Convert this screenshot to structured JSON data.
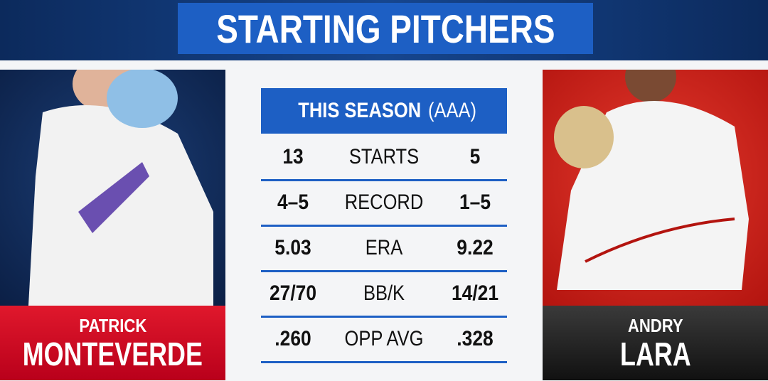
{
  "header": {
    "title": "STARTING PITCHERS"
  },
  "table": {
    "heading": {
      "main": "THIS SEASON",
      "sub": "(AAA)"
    },
    "rows": [
      [
        "13",
        "STARTS",
        "5"
      ],
      [
        "4–5",
        "RECORD",
        "1–5"
      ],
      [
        "5.03",
        "ERA",
        "9.22"
      ],
      [
        "27/70",
        "BB/K",
        "14/21"
      ],
      [
        ".260",
        "OPP AVG",
        ".328"
      ]
    ]
  },
  "players": [
    {
      "first": "PATRICK",
      "last": "MONTEVERDE"
    },
    {
      "first": "ANDRY",
      "last": "LARA"
    }
  ]
}
